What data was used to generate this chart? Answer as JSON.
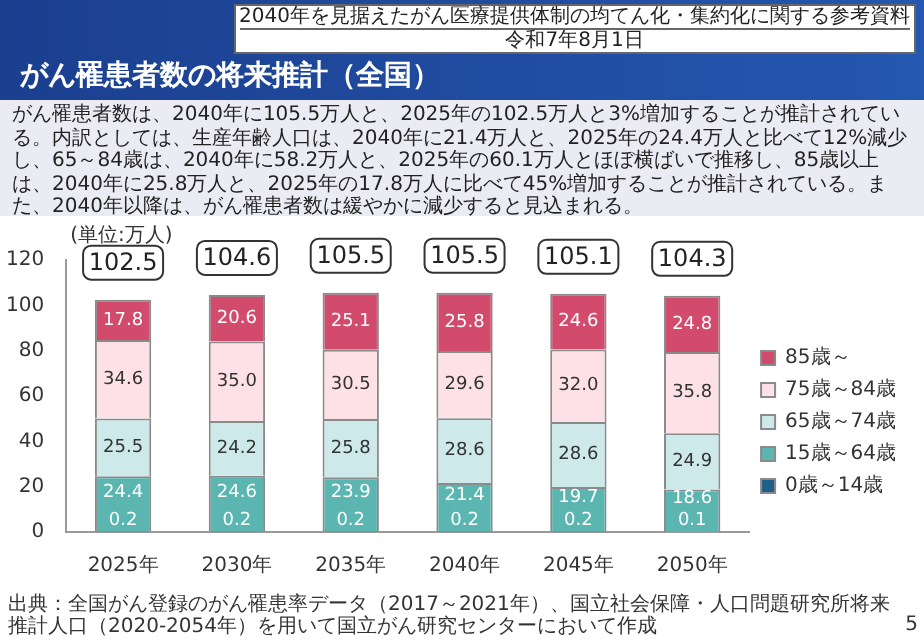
{
  "chart_data": {
    "type": "bar",
    "title": "がん罹患者数の将来推計（全国）",
    "subtitle": "がん罹患者数は、2040年に105.5万人と、2025年の102.5万人と3%増加することが推計されている。内訳としては、生産年齢人口は、2040年に21.4万人と、2025年の24.4万人と比べて12%減少し、65～84歳は、2040年に58.2万人と、2025年の60.1万人とほぼ横ばいで推移し、85歳以上は、2040年に25.8万人と、2025年の17.8万人に比べて45%増加することが推計されている。また、2040年以降は、がん罹患者数は緩やかに減少すると見込まれる。",
    "ylabel": "(単位:万人)",
    "annotations": [
      "2040年を見据えたがん医療提供体制の均てん化・集約化に関する参考資料",
      "令和7年8月1日",
      "出典：全国がん登録のがん罹患率データ（2017～2021年）、国立社会保障・人口問題研究所将来推計人口（2020-2054年）を用いて国立がん研究センターにおいて作成",
      "5"
    ],
    "categories": [
      "2025年",
      "2030年",
      "2035年",
      "2040年",
      "2045年",
      "2050年"
    ],
    "stacked": true,
    "series": [
      {
        "name": "0歳～14歳",
        "color": "#1f5f8a",
        "values": [
          0.2,
          0.2,
          0.2,
          0.2,
          0.2,
          0.1
        ],
        "value_labels": [
          "0.2",
          "0.2",
          "0.2",
          "0.2",
          "0.2",
          "0.1"
        ]
      },
      {
        "name": "15歳～64歳",
        "color": "#5bb5b1",
        "values": [
          24.4,
          24.6,
          23.9,
          21.4,
          19.7,
          18.6
        ],
        "value_labels": [
          "24.4",
          "24.6",
          "23.9",
          "21.4",
          "19.7",
          "18.6"
        ]
      },
      {
        "name": "65歳～74歳",
        "color": "#cde9e9",
        "values": [
          25.5,
          24.2,
          25.8,
          28.6,
          28.6,
          24.9
        ],
        "value_labels": [
          "25.5",
          "24.2",
          "25.8",
          "28.6",
          "28.6",
          "24.9"
        ]
      },
      {
        "name": "75歳～84歳",
        "color": "#fde1e6",
        "values": [
          34.6,
          35.0,
          30.5,
          29.6,
          32.0,
          35.8
        ],
        "value_labels": [
          "34.6",
          "35.0",
          "30.5",
          "29.6",
          "32.0",
          "35.8"
        ]
      },
      {
        "name": "85歳～",
        "color": "#d24a6c",
        "values": [
          17.8,
          20.6,
          25.1,
          25.8,
          24.6,
          24.8
        ],
        "value_labels": [
          "17.8",
          "20.6",
          "25.1",
          "25.8",
          "24.6",
          "24.8"
        ]
      }
    ],
    "totals": [
      "102.5",
      "104.6",
      "105.5",
      "105.5",
      "105.1",
      "104.3"
    ],
    "ylim": [
      0,
      120
    ],
    "yticks": [
      0,
      20,
      40,
      60,
      80,
      100,
      120
    ],
    "legend": "right"
  }
}
